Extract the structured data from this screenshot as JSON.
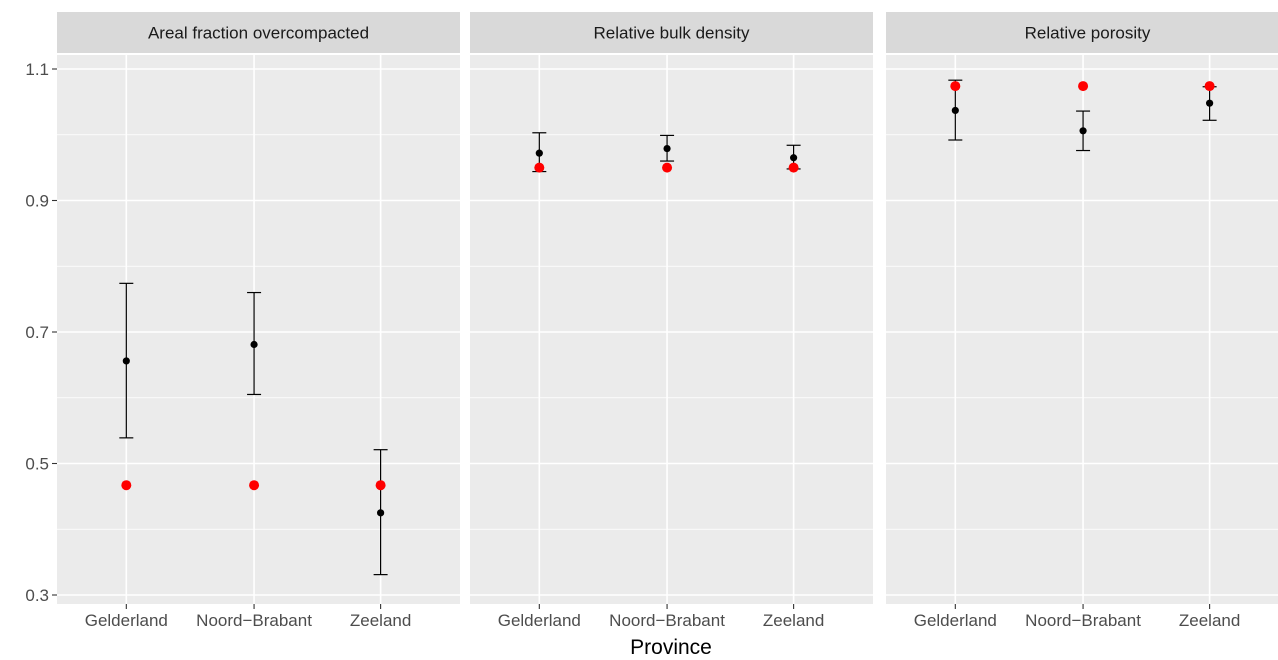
{
  "chart_data": {
    "type": "scatter",
    "xlabel": "Province",
    "ylabel": "",
    "ylim": [
      0.3,
      1.1
    ],
    "y_ticks": [
      "0.3",
      "0.5",
      "0.7",
      "0.9",
      "1.1"
    ],
    "categories": [
      "Gelderland",
      "Noord−Brabant",
      "Zeeland"
    ],
    "grid": true,
    "colors": {
      "estimate": "#000000",
      "reference": "#ff0000",
      "panel_bg": "#ebebeb",
      "strip_bg": "#d9d9d9",
      "grid": "#ffffff"
    },
    "panels": [
      {
        "title": "Areal fraction overcompacted",
        "series": [
          {
            "values": [
              0.656,
              0.681,
              0.425
            ],
            "lower": [
              0.539,
              0.605,
              0.331
            ],
            "upper": [
              0.774,
              0.76,
              0.521
            ]
          },
          {
            "values": [
              0.467,
              0.467,
              0.467
            ]
          }
        ]
      },
      {
        "title": "Relative bulk density",
        "series": [
          {
            "values": [
              0.972,
              0.979,
              0.965
            ],
            "lower": [
              0.944,
              0.96,
              0.948
            ],
            "upper": [
              1.003,
              0.999,
              0.984
            ]
          },
          {
            "values": [
              0.95,
              0.95,
              0.95
            ]
          }
        ]
      },
      {
        "title": "Relative porosity",
        "series": [
          {
            "values": [
              1.037,
              1.006,
              1.048
            ],
            "lower": [
              0.992,
              0.976,
              1.022
            ],
            "upper": [
              1.083,
              1.036,
              1.073
            ]
          },
          {
            "values": [
              1.074,
              1.074,
              1.074
            ]
          }
        ]
      }
    ]
  }
}
